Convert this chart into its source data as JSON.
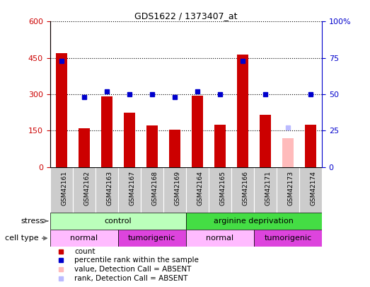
{
  "title": "GDS1622 / 1373407_at",
  "samples": [
    "GSM42161",
    "GSM42162",
    "GSM42163",
    "GSM42167",
    "GSM42168",
    "GSM42169",
    "GSM42164",
    "GSM42165",
    "GSM42166",
    "GSM42171",
    "GSM42173",
    "GSM42174"
  ],
  "count_values": [
    470,
    160,
    290,
    225,
    170,
    155,
    295,
    175,
    465,
    215,
    120,
    175
  ],
  "count_absent": [
    false,
    false,
    false,
    false,
    false,
    false,
    false,
    false,
    false,
    false,
    true,
    false
  ],
  "percentile_values": [
    73,
    48,
    52,
    50,
    50,
    48,
    52,
    50,
    73,
    50,
    27,
    50
  ],
  "percentile_absent": [
    false,
    false,
    false,
    false,
    false,
    false,
    false,
    false,
    false,
    false,
    true,
    false
  ],
  "ylim_left": [
    0,
    600
  ],
  "ylim_right": [
    0,
    100
  ],
  "yticks_left": [
    0,
    150,
    300,
    450,
    600
  ],
  "yticks_right": [
    0,
    25,
    50,
    75,
    100
  ],
  "ytick_labels_right": [
    "0",
    "25",
    "50",
    "75",
    "100%"
  ],
  "bar_color": "#cc0000",
  "bar_absent_color": "#ffbbbb",
  "dot_color": "#0000cc",
  "dot_absent_color": "#bbbbff",
  "stress_groups": [
    {
      "label": "control",
      "start": 0,
      "end": 6,
      "color": "#bbffbb"
    },
    {
      "label": "arginine deprivation",
      "start": 6,
      "end": 12,
      "color": "#44dd44"
    }
  ],
  "cell_type_groups": [
    {
      "label": "normal",
      "start": 0,
      "end": 3,
      "color": "#ffbbff"
    },
    {
      "label": "tumorigenic",
      "start": 3,
      "end": 6,
      "color": "#dd44dd"
    },
    {
      "label": "normal",
      "start": 6,
      "end": 9,
      "color": "#ffbbff"
    },
    {
      "label": "tumorigenic",
      "start": 9,
      "end": 12,
      "color": "#dd44dd"
    }
  ],
  "legend_items": [
    {
      "label": "count",
      "color": "#cc0000"
    },
    {
      "label": "percentile rank within the sample",
      "color": "#0000cc"
    },
    {
      "label": "value, Detection Call = ABSENT",
      "color": "#ffbbbb"
    },
    {
      "label": "rank, Detection Call = ABSENT",
      "color": "#bbbbff"
    }
  ],
  "stress_label": "stress",
  "cell_type_label": "cell type",
  "left_axis_color": "#cc0000",
  "right_axis_color": "#0000cc",
  "bar_width": 0.5,
  "background_color": "#ffffff",
  "xticklabel_area_color": "#cccccc",
  "border_color": "#000000"
}
